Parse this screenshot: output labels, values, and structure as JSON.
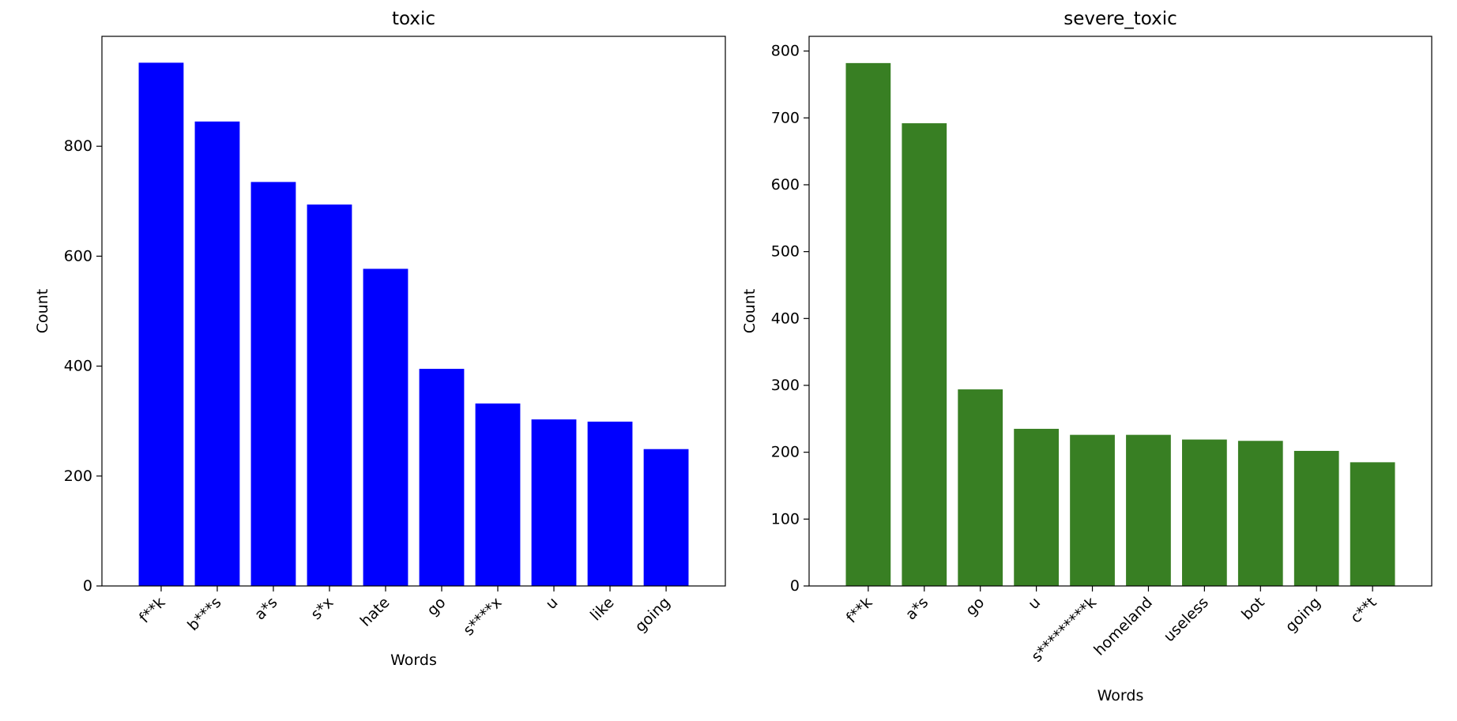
{
  "chart_data": [
    {
      "type": "bar",
      "title": "toxic",
      "xlabel": "Words",
      "ylabel": "Count",
      "categories": [
        "f**k",
        "b***s",
        "a*s",
        "s*x",
        "hate",
        "go",
        "s****x",
        "u",
        "like",
        "going"
      ],
      "values": [
        952,
        845,
        735,
        694,
        577,
        395,
        332,
        303,
        299,
        249
      ],
      "ylim": [
        0,
        1000
      ],
      "yticks": [
        0,
        200,
        400,
        600,
        800
      ],
      "color": "#0000ff",
      "grid": false,
      "legend": null
    },
    {
      "type": "bar",
      "title": "severe_toxic",
      "xlabel": "Words",
      "ylabel": "Count",
      "categories": [
        "f**k",
        "a*s",
        "go",
        "u",
        "s*********k",
        "homeland",
        "useless",
        "bot",
        "going",
        "c**t"
      ],
      "values": [
        782,
        692,
        294,
        235,
        226,
        226,
        219,
        217,
        202,
        185
      ],
      "ylim": [
        0,
        822
      ],
      "yticks": [
        0,
        100,
        200,
        300,
        400,
        500,
        600,
        700,
        800
      ],
      "color": "#387f23",
      "grid": false,
      "legend": null
    }
  ]
}
